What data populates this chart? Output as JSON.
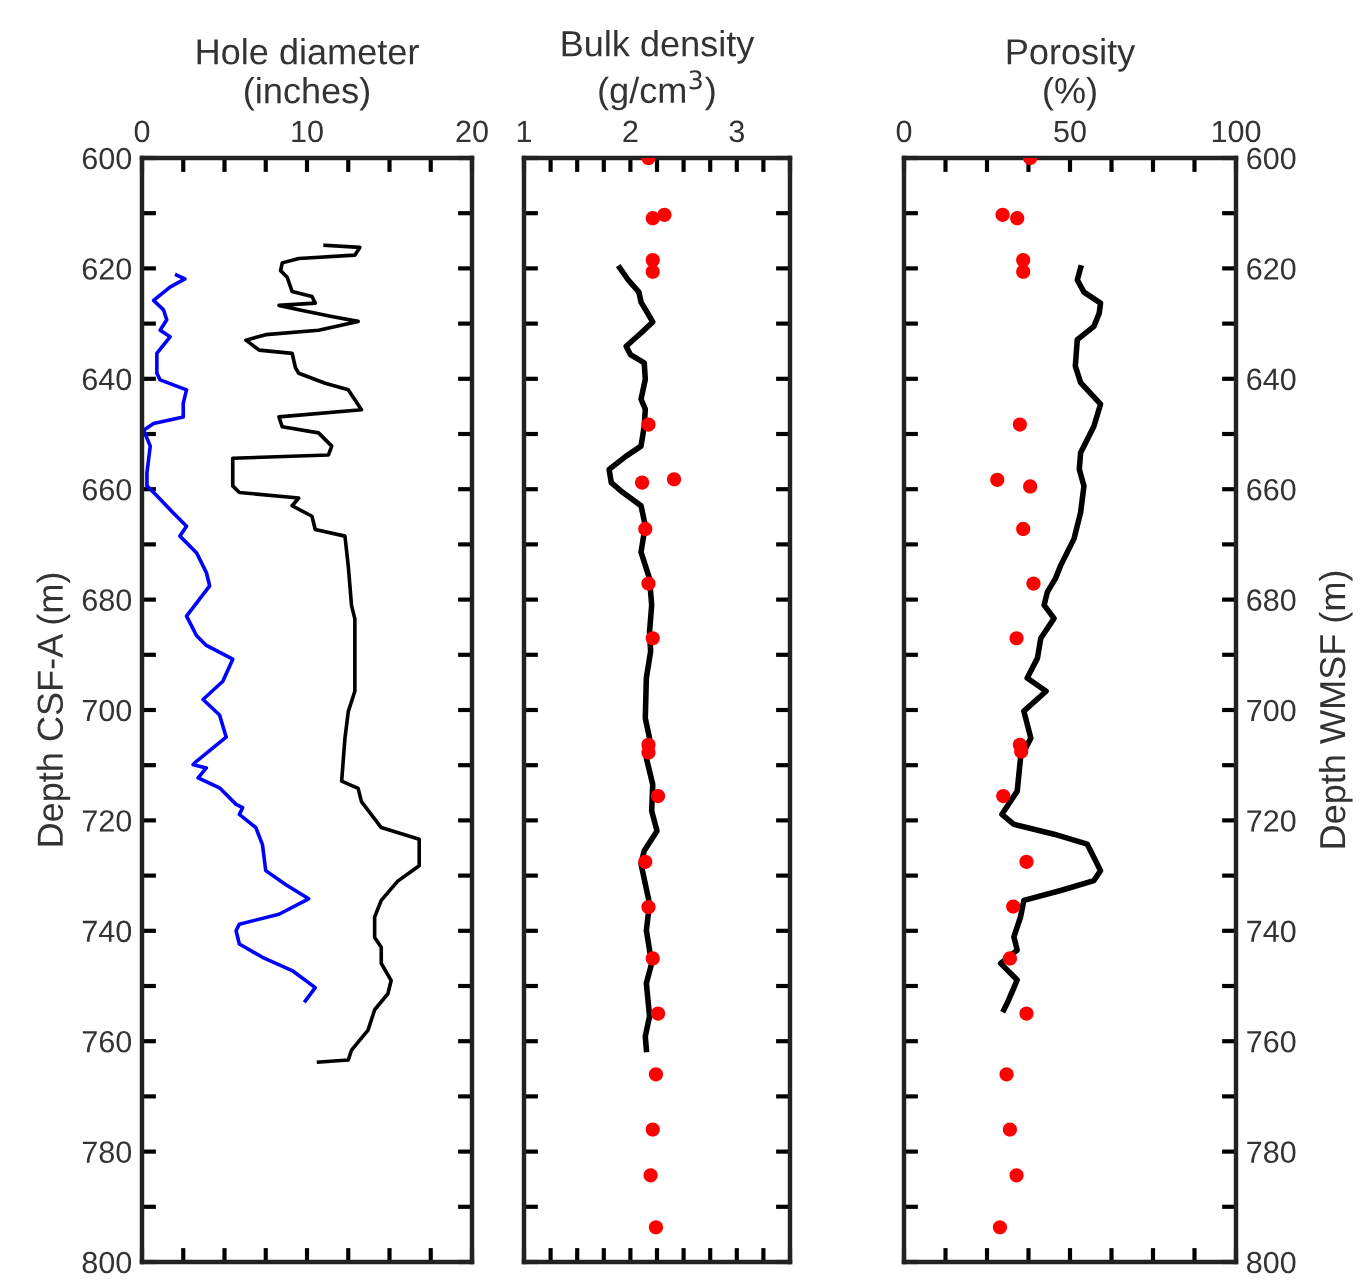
{
  "chart_data": [
    {
      "type": "line",
      "xlabel": "Hole diameter\n(inches)",
      "ylabel": "Depth CSF-A (m)",
      "xlim": [
        0,
        20
      ],
      "xticks": [
        0,
        {
          "value": 2.5,
          "label": null
        },
        {
          "value": 5,
          "label": null
        },
        {
          "value": 7.5,
          "label": null
        },
        10,
        {
          "value": 12.5,
          "label": null
        },
        {
          "value": 15,
          "label": null
        },
        {
          "value": 17.5,
          "label": null
        },
        20
      ],
      "ylim": [
        800,
        600
      ],
      "yticks": [
        600,
        {
          "value": 610,
          "label": null
        },
        620,
        {
          "value": 630,
          "label": null
        },
        640,
        {
          "value": 650,
          "label": null
        },
        660,
        {
          "value": 670,
          "label": null
        },
        680,
        {
          "value": 690,
          "label": null
        },
        700,
        {
          "value": 710,
          "label": null
        },
        720,
        {
          "value": 730,
          "label": null
        },
        740,
        {
          "value": 750,
          "label": null
        },
        760,
        {
          "value": 770,
          "label": null
        },
        780,
        {
          "value": 790,
          "label": null
        },
        800
      ],
      "series": [
        {
          "color": "#000000",
          "x": [
            11.1,
            13.2,
            12.9,
            9.5,
            8.5,
            8.4,
            8.8,
            9.1,
            10.3,
            10.5,
            8.3,
            9.5,
            11.5,
            13.1,
            10.7,
            7.5,
            6.3,
            7.1,
            9.1,
            9.3,
            9.5,
            11.1,
            12.5,
            13.3,
            8.3,
            8.5,
            10.7,
            11.5,
            11.3,
            5.5,
            5.5,
            5.9,
            9.5,
            9.1,
            10.3,
            10.5,
            12.3,
            12.5,
            12.7,
            12.9,
            12.9,
            12.5,
            12.3,
            12.1,
            13.1,
            13.3,
            14.5,
            16.8,
            16.8,
            15.5,
            14.5,
            14.1,
            14.1,
            14.5,
            14.5,
            15.1,
            14.9,
            14.1,
            13.7,
            12.7,
            12.5,
            10.7
          ],
          "values": [
            615.8,
            616.2,
            617.6,
            618.2,
            619.0,
            620.4,
            621.6,
            624.2,
            625.1,
            626.3,
            626.7,
            627.5,
            628.7,
            629.6,
            631.2,
            632.0,
            633.0,
            634.8,
            635.4,
            638.0,
            639.0,
            640.8,
            642.0,
            645.6,
            646.9,
            648.7,
            649.8,
            652.2,
            653.8,
            654.4,
            659.4,
            660.6,
            661.6,
            663.0,
            664.9,
            667.3,
            668.5,
            673.9,
            681.1,
            683.5,
            696.6,
            700.3,
            705.1,
            712.9,
            714.2,
            716.6,
            721.3,
            723.4,
            728.2,
            731.0,
            734.5,
            737.5,
            741.2,
            743.0,
            745.9,
            749.0,
            751.4,
            754.3,
            758.0,
            761.6,
            763.4,
            763.8
          ]
        },
        {
          "color": "#0000ff",
          "x": [
            2.1,
            2.6,
            1.7,
            0.7,
            1.3,
            1.5,
            1.1,
            1.7,
            0.9,
            0.9,
            1.1,
            2.7,
            2.5,
            2.5,
            0.7,
            0.1,
            0.5,
            0.3,
            0.3,
            0.9,
            1.9,
            2.7,
            2.3,
            3.3,
            3.9,
            4.1,
            2.7,
            3.3,
            3.9,
            5.5,
            4.9,
            3.7,
            4.7,
            5.1,
            3.3,
            3.1,
            3.9,
            3.4,
            4.7,
            5.7,
            6.1,
            5.9,
            6.9,
            7.3,
            7.5,
            8.7,
            10.1,
            8.3,
            5.9,
            5.7,
            5.9,
            7.3,
            9.1,
            10.5,
            9.9
          ],
          "values": [
            621.2,
            621.9,
            623.4,
            625.8,
            627.5,
            629.3,
            631.2,
            632.4,
            635.4,
            639.0,
            640.2,
            642.0,
            644.4,
            646.9,
            648.1,
            649.3,
            652.2,
            657.0,
            659.4,
            661.2,
            664.3,
            666.7,
            668.5,
            671.5,
            675.1,
            677.5,
            683.0,
            686.5,
            688.3,
            690.8,
            694.8,
            698.1,
            700.9,
            704.9,
            709.3,
            709.9,
            710.5,
            712.3,
            714.1,
            717.1,
            717.7,
            718.9,
            721.3,
            724.4,
            729.1,
            731.6,
            734.2,
            737.0,
            738.8,
            740.0,
            742.4,
            744.8,
            747.2,
            750.3,
            752.7
          ]
        }
      ]
    },
    {
      "type": "line",
      "xlabel": "Bulk density\n(g/cm$^{3}$)",
      "tick_labels": "x",
      "xlim": [
        1,
        3.5
      ],
      "xticks": [
        1,
        {
          "value": 1.25,
          "label": null
        },
        {
          "value": 1.5,
          "label": null
        },
        {
          "value": 1.75,
          "label": null
        },
        2,
        {
          "value": 2.25,
          "label": null
        },
        {
          "value": 2.5,
          "label": null
        },
        {
          "value": 2.75,
          "label": null
        },
        3,
        {
          "value": 3.25,
          "label": null
        },
        {
          "value": 3.5,
          "label": null
        }
      ],
      "ylim": [
        800,
        600
      ],
      "yticks": [
        600,
        {
          "value": 610,
          "label": null
        },
        620,
        {
          "value": 630,
          "label": null
        },
        640,
        {
          "value": 650,
          "label": null
        },
        660,
        {
          "value": 670,
          "label": null
        },
        680,
        {
          "value": 690,
          "label": null
        },
        700,
        {
          "value": 710,
          "label": null
        },
        720,
        {
          "value": 730,
          "label": null
        },
        740,
        {
          "value": 750,
          "label": null
        },
        760,
        {
          "value": 770,
          "label": null
        },
        780,
        {
          "value": 790,
          "label": null
        },
        800
      ],
      "series": [
        {
          "color": "#000000",
          "x": [
            1.9,
            1.98,
            2.08,
            2.1,
            2.21,
            2.1,
            1.96,
            2.0,
            2.13,
            2.14,
            2.1,
            2.14,
            2.13,
            2.1,
            1.96,
            1.8,
            1.82,
            1.93,
            2.1,
            2.14,
            2.1,
            2.18,
            2.2,
            2.18,
            2.19,
            2.15,
            2.14,
            2.18,
            2.15,
            2.21,
            2.2,
            2.25,
            2.13,
            2.1,
            2.18,
            2.15,
            2.2,
            2.15,
            2.18,
            2.14,
            2.15
          ],
          "values": [
            619.9,
            622.1,
            624.3,
            626.1,
            629.7,
            631.7,
            634.1,
            635.6,
            637.1,
            640.1,
            643.7,
            645.5,
            648.6,
            652.2,
            654.0,
            656.4,
            658.8,
            660.6,
            663.0,
            666.6,
            671.4,
            676.2,
            681.0,
            685.8,
            689.4,
            694.2,
            701.5,
            705.1,
            708.7,
            713.5,
            718.3,
            721.9,
            725.5,
            727.9,
            735.1,
            739.9,
            745.9,
            749.5,
            755.5,
            759.1,
            761.5
          ]
        },
        {
          "type": "scatter",
          "color": "#ff0000",
          "marker": "circle",
          "x": [
            2.17,
            2.21,
            2.32,
            2.21,
            2.21,
            2.17,
            2.11,
            2.41,
            2.14,
            2.17,
            2.21,
            2.17,
            2.17,
            2.26,
            2.14,
            2.17,
            2.21,
            2.26,
            2.24,
            2.21,
            2.19,
            2.24
          ],
          "values": [
            600,
            610.9,
            610.3,
            618.5,
            620.6,
            648.3,
            658.8,
            658.2,
            667.2,
            677.1,
            687.0,
            706.3,
            707.7,
            715.6,
            727.5,
            735.7,
            745.0,
            755.0,
            766.0,
            776.0,
            784.3,
            793.7
          ]
        }
      ]
    },
    {
      "type": "line",
      "xlabel": "Porosity\n(%)",
      "y2label": "Depth WMSF (m)",
      "xlim": [
        0,
        100
      ],
      "xticks": [
        0,
        {
          "value": 12.5,
          "label": null
        },
        {
          "value": 25,
          "label": null
        },
        {
          "value": 37.5,
          "label": null
        },
        50,
        {
          "value": 62.5,
          "label": null
        },
        {
          "value": 75,
          "label": null
        },
        {
          "value": 87.5,
          "label": null
        },
        100
      ],
      "y2lim": [
        800,
        600
      ],
      "y2ticks": [
        600,
        {
          "value": 610,
          "label": null
        },
        620,
        {
          "value": 630,
          "label": null
        },
        640,
        {
          "value": 650,
          "label": null
        },
        660,
        {
          "value": 670,
          "label": null
        },
        680,
        {
          "value": 690,
          "label": null
        },
        700,
        {
          "value": 710,
          "label": null
        },
        720,
        {
          "value": 730,
          "label": null
        },
        740,
        {
          "value": 750,
          "label": null
        },
        760,
        {
          "value": 770,
          "label": null
        },
        780,
        {
          "value": 790,
          "label": null
        },
        800
      ],
      "series": [
        {
          "color": "#000000",
          "axis": "y2",
          "x": [
            53.2,
            52.2,
            54.2,
            59.2,
            58.8,
            57.2,
            52.2,
            51.6,
            53.2,
            59.2,
            57.2,
            53.2,
            52.8,
            54.2,
            53.2,
            51.2,
            47.2,
            45.6,
            43.2,
            42.2,
            45.2,
            41.2,
            40.2,
            37.1,
            42.8,
            36.1,
            38.2,
            35.1,
            34.1,
            29.5,
            33.1,
            45.2,
            55.2,
            58.2,
            59.2,
            57.2,
            47.2,
            36.1,
            35.1,
            33.1,
            34.1,
            29.1,
            34.1,
            31.1,
            30.1
          ],
          "values": [
            619.9,
            622.1,
            624.3,
            626.3,
            628.1,
            630.5,
            632.9,
            637.7,
            640.7,
            644.6,
            648.6,
            653.4,
            656.4,
            659.4,
            664.2,
            669.0,
            673.8,
            676.2,
            678.6,
            681.0,
            683.4,
            687.0,
            690.6,
            694.2,
            696.6,
            700.2,
            705.1,
            708.7,
            714.7,
            718.9,
            720.7,
            722.5,
            724.3,
            727.9,
            729.1,
            730.9,
            732.7,
            734.5,
            737.5,
            741.1,
            743.5,
            745.9,
            748.9,
            753.1,
            754.3
          ]
        },
        {
          "type": "scatter",
          "color": "#ff0000",
          "axis": "y2",
          "marker": "circle",
          "x": [
            38.0,
            29.7,
            34.1,
            35.9,
            35.9,
            34.9,
            28.1,
            38.0,
            35.9,
            39.0,
            33.9,
            34.9,
            35.3,
            29.9,
            36.9,
            32.9,
            31.9,
            36.9,
            30.9,
            31.9,
            33.9,
            28.9
          ],
          "values": [
            600,
            610.3,
            610.9,
            618.5,
            620.6,
            648.3,
            658.3,
            659.5,
            667.2,
            677.1,
            687.0,
            706.3,
            707.5,
            715.6,
            727.5,
            735.6,
            745.0,
            755.0,
            766.0,
            776.0,
            784.3,
            793.7
          ]
        }
      ]
    }
  ]
}
